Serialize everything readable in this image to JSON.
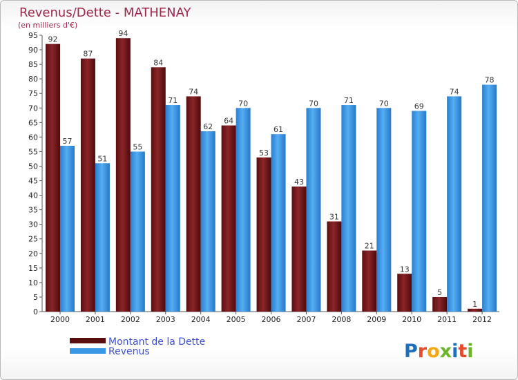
{
  "chart_data": {
    "type": "bar",
    "title": "Revenus/Dette - MATHENAY",
    "subtitle": "(en milliers d'€)",
    "categories": [
      "2000",
      "2001",
      "2002",
      "2003",
      "2004",
      "2005",
      "2006",
      "2007",
      "2008",
      "2009",
      "2010",
      "2011",
      "2012"
    ],
    "series": [
      {
        "name": "Montant de la Dette",
        "color": "#7a1a1c",
        "values": [
          92,
          87,
          94,
          84,
          74,
          64,
          53,
          43,
          31,
          21,
          13,
          5,
          1
        ]
      },
      {
        "name": "Revenus",
        "color": "#3a97e6",
        "values": [
          57,
          51,
          55,
          71,
          62,
          70,
          61,
          70,
          71,
          70,
          69,
          74,
          78
        ]
      }
    ],
    "ylim": [
      0,
      95
    ],
    "ytick_step": 5,
    "grid": false,
    "legend_position": "bottom-left"
  },
  "logo": {
    "letters": [
      "P",
      "r",
      "o",
      "x",
      "i",
      "t",
      "i"
    ],
    "colors": [
      "#1f6fb8",
      "#e84b2c",
      "#f3a712",
      "#6bb42b",
      "#1f6fb8",
      "#e84b2c",
      "#6bb42b"
    ]
  }
}
